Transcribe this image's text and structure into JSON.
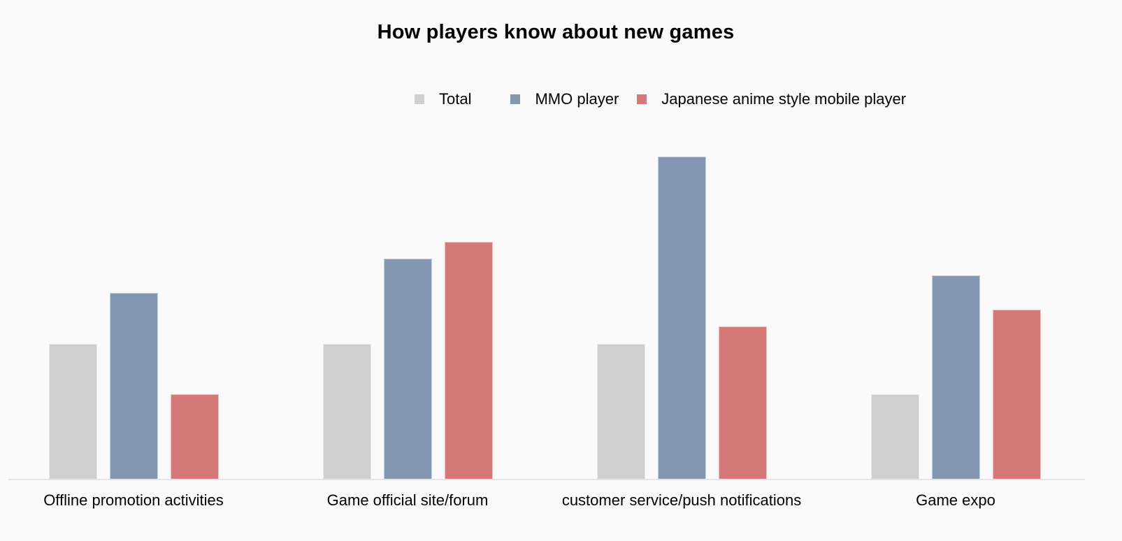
{
  "chart_data": {
    "type": "bar",
    "title": "How players know about new games",
    "xlabel": "",
    "ylabel": "",
    "categories": [
      "Offline promotion activities",
      "Game official site/forum",
      "customer service/push notifications",
      "Game expo"
    ],
    "series": [
      {
        "name": "Total",
        "color": "#d0cfcf",
        "values": [
          8,
          8,
          8,
          5
        ]
      },
      {
        "name": "MMO player",
        "color": "#8497b0",
        "values": [
          11,
          13,
          19,
          12
        ]
      },
      {
        "name": "Japanese anime style mobile player",
        "color": "#d47878",
        "values": [
          5,
          14,
          9,
          10
        ]
      }
    ],
    "ylim": [
      0,
      20
    ],
    "grid": false,
    "y_axis_visible": false,
    "legend_position": "top-right"
  }
}
